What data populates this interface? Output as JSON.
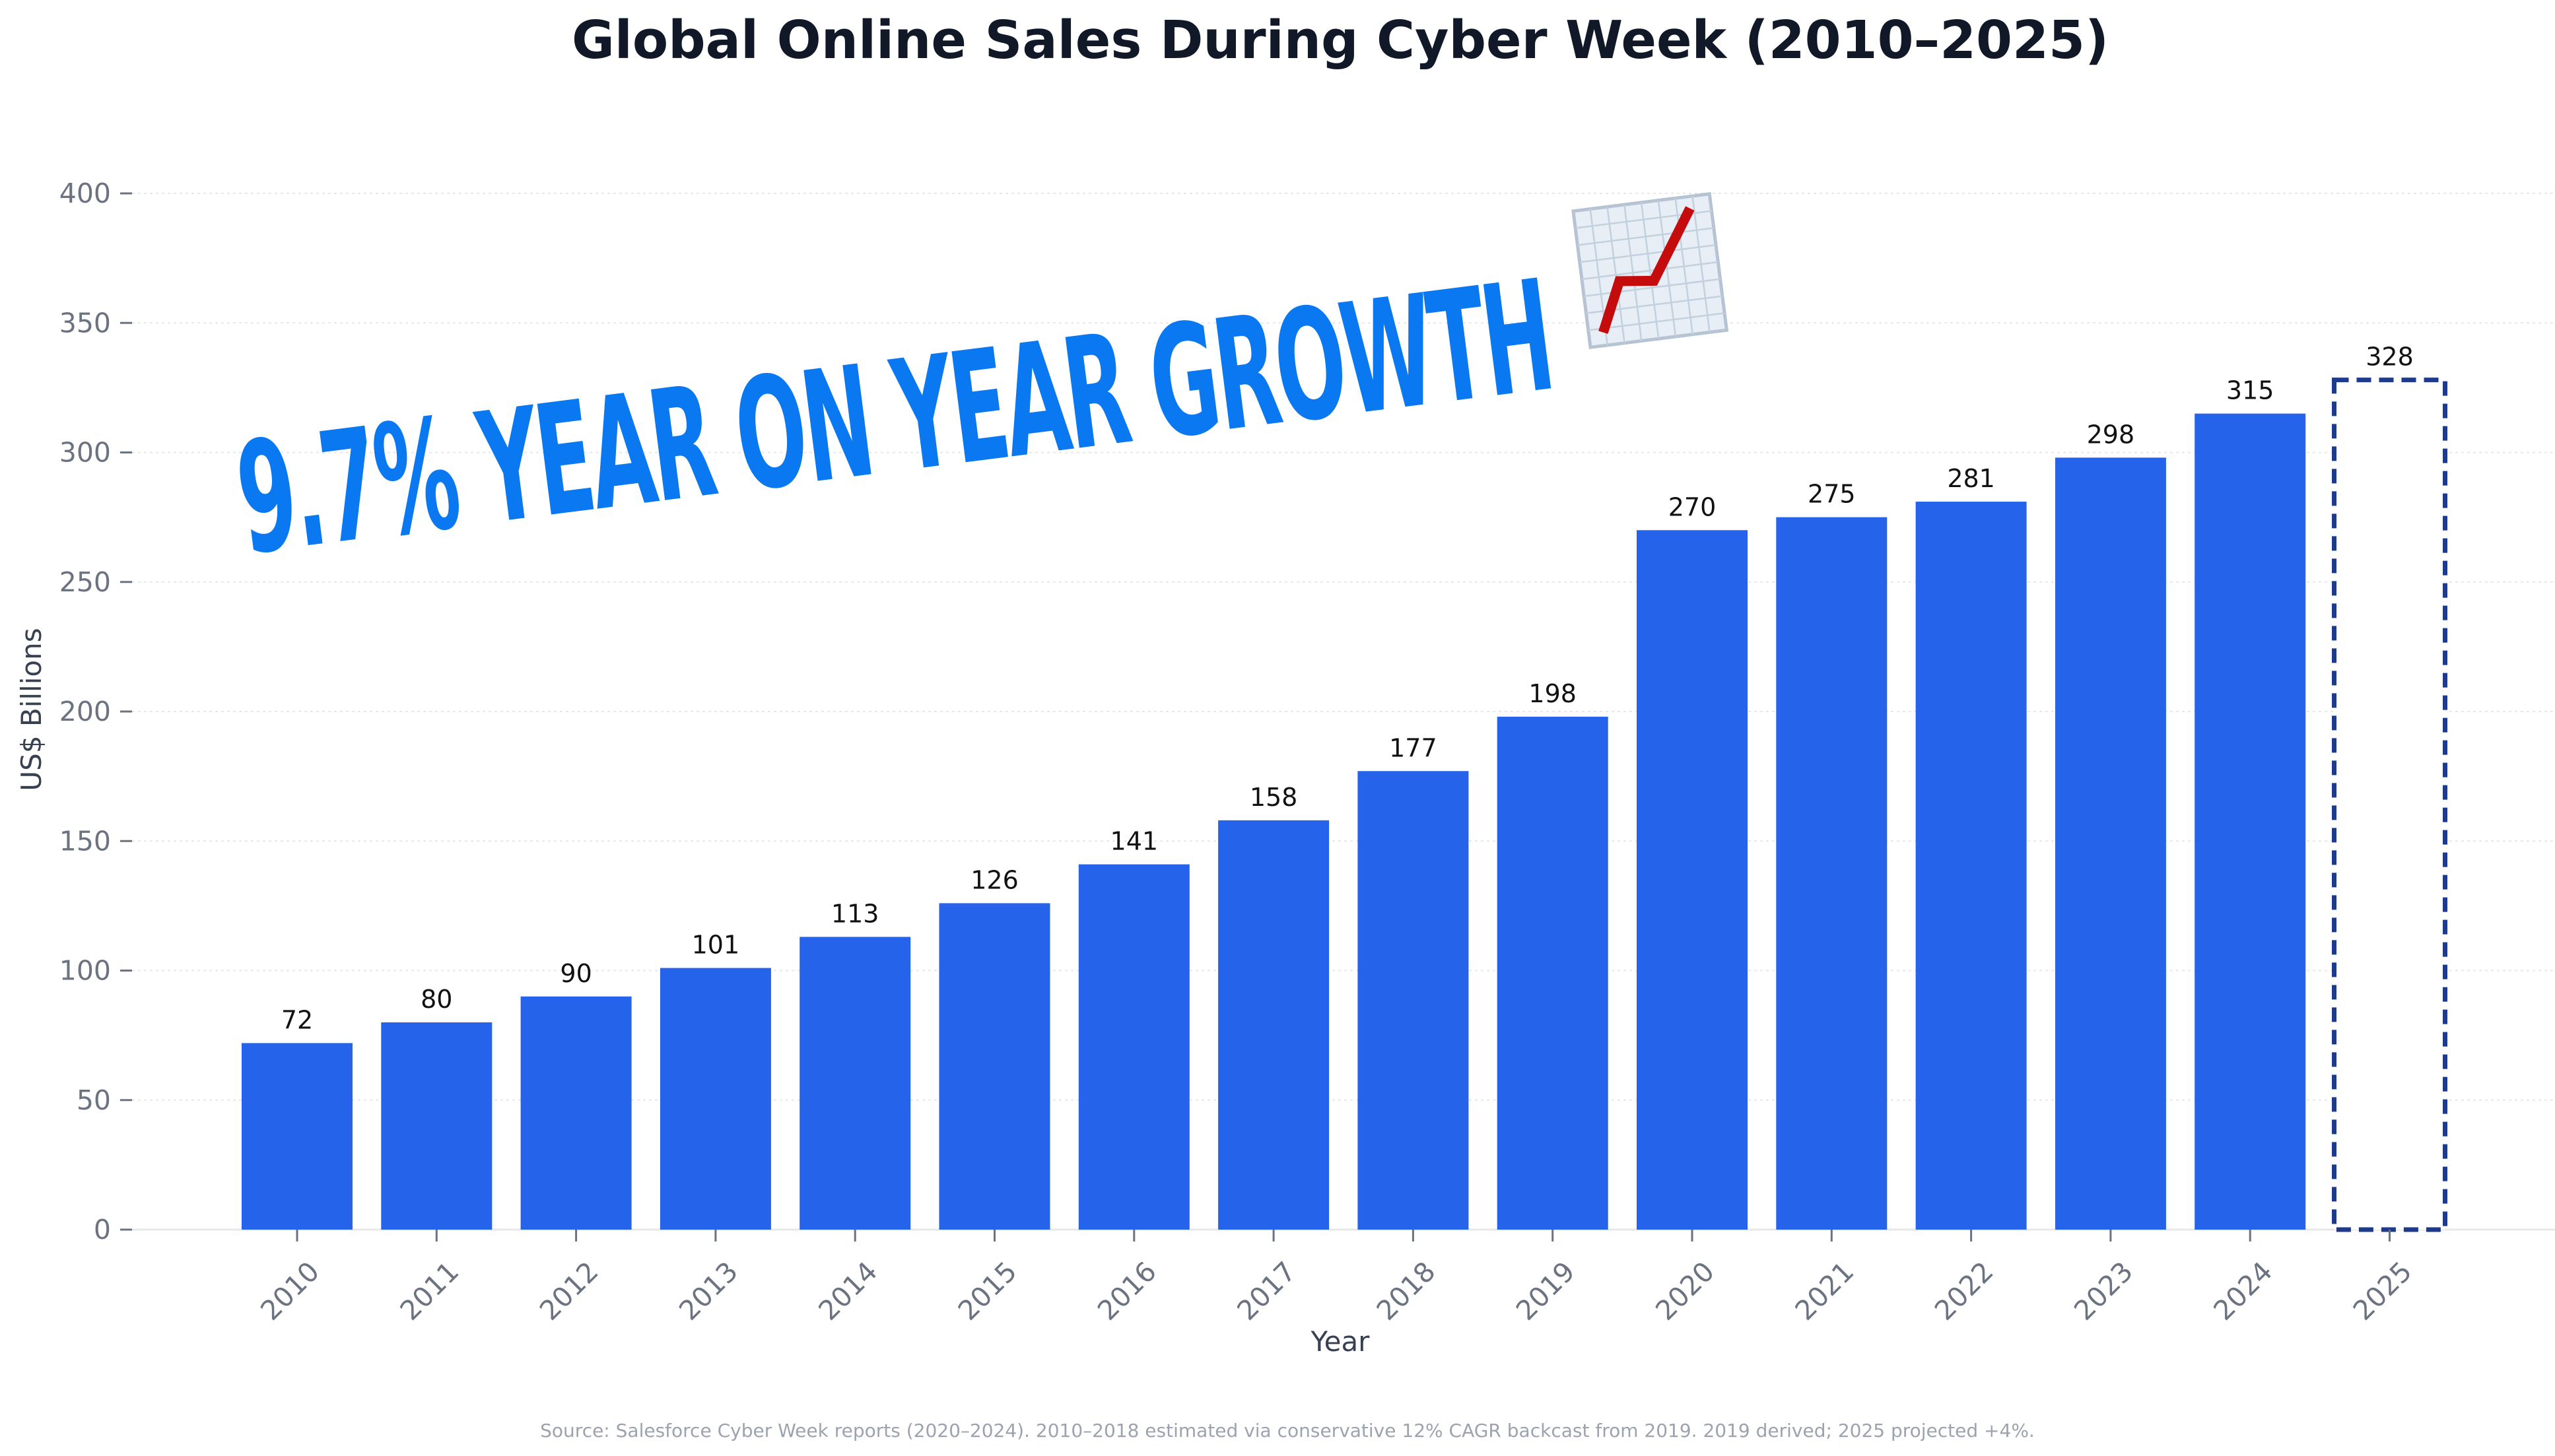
{
  "chart_data": {
    "type": "bar",
    "title": "Global Online Sales During Cyber Week (2010–2025)",
    "xlabel": "Year",
    "ylabel": "US$ Billions",
    "ylim": [
      0,
      400
    ],
    "yticks": [
      0,
      50,
      100,
      150,
      200,
      250,
      300,
      350,
      400
    ],
    "grid": true,
    "categories": [
      "2010",
      "2011",
      "2012",
      "2013",
      "2014",
      "2015",
      "2016",
      "2017",
      "2018",
      "2019",
      "2020",
      "2021",
      "2022",
      "2023",
      "2024",
      "2025"
    ],
    "values": [
      72,
      80,
      90,
      101,
      113,
      126,
      141,
      158,
      177,
      198,
      270,
      275,
      281,
      298,
      315,
      328
    ],
    "projected": [
      false,
      false,
      false,
      false,
      false,
      false,
      false,
      false,
      false,
      false,
      false,
      false,
      false,
      false,
      false,
      true
    ],
    "bar_color": "#2563eb",
    "projected_edge_color": "#1e3a8a",
    "annotation": "9.7% YEAR ON YEAR GROWTH",
    "annotation_color": "#0a78f0",
    "annotation_icon": "chart-increasing-icon",
    "source": "Source: Salesforce Cyber Week reports (2020–2024). 2010–2018 estimated via conservative 12% CAGR backcast from 2019. 2019 derived; 2025 projected +4%."
  }
}
